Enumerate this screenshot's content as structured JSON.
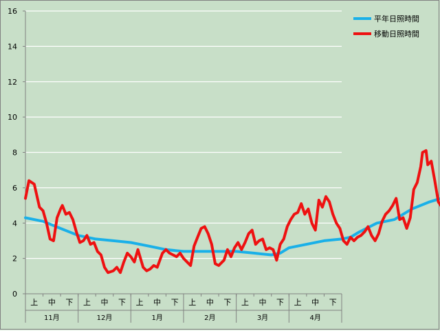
{
  "colors": {
    "background": "#c8dfc8",
    "grid": "#ffffff",
    "axis": "#808080",
    "border": "#808080",
    "text": "#000000"
  },
  "chart_data": {
    "type": "line",
    "title": "",
    "xlabel": "",
    "ylabel": "",
    "ylim": [
      0,
      16
    ],
    "yticks": [
      0,
      2,
      4,
      6,
      8,
      10,
      12,
      14,
      16
    ],
    "grid": true,
    "legend_position": "top-right",
    "x_groups": [
      {
        "month": "11月",
        "periods": [
          "上",
          "中",
          "下"
        ]
      },
      {
        "month": "12月",
        "periods": [
          "上",
          "中",
          "下"
        ]
      },
      {
        "month": "1月",
        "periods": [
          "上",
          "中",
          "下"
        ]
      },
      {
        "month": "2月",
        "periods": [
          "上",
          "中",
          "下"
        ]
      },
      {
        "month": "3月",
        "periods": [
          "上",
          "中",
          "下"
        ]
      },
      {
        "month": "4月",
        "periods": [
          "上",
          "中",
          "下"
        ]
      }
    ],
    "series": [
      {
        "name": "平年日照時間",
        "color": "#1ab0e8",
        "line_width": 4,
        "points": [
          [
            0,
            4.3
          ],
          [
            1,
            4.1
          ],
          [
            2,
            3.7
          ],
          [
            3,
            3.3
          ],
          [
            4,
            3.1
          ],
          [
            5,
            3.0
          ],
          [
            6,
            2.9
          ],
          [
            7,
            2.7
          ],
          [
            8,
            2.5
          ],
          [
            9,
            2.4
          ],
          [
            10,
            2.4
          ],
          [
            11,
            2.4
          ],
          [
            12,
            2.4
          ],
          [
            13,
            2.3
          ],
          [
            14,
            2.2
          ],
          [
            14.5,
            2.3
          ],
          [
            15,
            2.6
          ],
          [
            16,
            2.8
          ],
          [
            17,
            3.0
          ],
          [
            18,
            3.1
          ],
          [
            18.5,
            3.2
          ],
          [
            19,
            3.5
          ],
          [
            20,
            4.0
          ],
          [
            21,
            4.2
          ],
          [
            22,
            4.8
          ],
          [
            23,
            5.2
          ],
          [
            24,
            5.5
          ],
          [
            25,
            5.7
          ],
          [
            26,
            6.0
          ],
          [
            27,
            6.1
          ],
          [
            28,
            6.3
          ],
          [
            29,
            6.7
          ],
          [
            29.5,
            6.7
          ]
        ]
      },
      {
        "name": "移動日照時間",
        "color": "#ee1111",
        "line_width": 4,
        "points": [
          [
            0,
            5.4
          ],
          [
            0.2,
            6.4
          ],
          [
            0.5,
            6.2
          ],
          [
            0.8,
            4.9
          ],
          [
            1.0,
            4.7
          ],
          [
            1.2,
            4.0
          ],
          [
            1.4,
            3.1
          ],
          [
            1.6,
            3.0
          ],
          [
            1.8,
            4.3
          ],
          [
            2.0,
            4.8
          ],
          [
            2.1,
            5.0
          ],
          [
            2.3,
            4.5
          ],
          [
            2.5,
            4.6
          ],
          [
            2.7,
            4.2
          ],
          [
            2.9,
            3.5
          ],
          [
            3.1,
            2.9
          ],
          [
            3.3,
            3.0
          ],
          [
            3.5,
            3.3
          ],
          [
            3.7,
            2.8
          ],
          [
            3.9,
            2.9
          ],
          [
            4.1,
            2.4
          ],
          [
            4.3,
            2.2
          ],
          [
            4.5,
            1.5
          ],
          [
            4.7,
            1.2
          ],
          [
            5.0,
            1.3
          ],
          [
            5.2,
            1.5
          ],
          [
            5.4,
            1.2
          ],
          [
            5.6,
            1.8
          ],
          [
            5.8,
            2.3
          ],
          [
            6.0,
            2.1
          ],
          [
            6.2,
            1.8
          ],
          [
            6.4,
            2.5
          ],
          [
            6.7,
            1.5
          ],
          [
            6.9,
            1.3
          ],
          [
            7.1,
            1.4
          ],
          [
            7.3,
            1.6
          ],
          [
            7.5,
            1.5
          ],
          [
            7.8,
            2.3
          ],
          [
            8.0,
            2.5
          ],
          [
            8.2,
            2.3
          ],
          [
            8.4,
            2.2
          ],
          [
            8.6,
            2.1
          ],
          [
            8.8,
            2.3
          ],
          [
            9.0,
            2.0
          ],
          [
            9.2,
            1.8
          ],
          [
            9.4,
            1.6
          ],
          [
            9.6,
            2.7
          ],
          [
            9.8,
            3.2
          ],
          [
            10.0,
            3.7
          ],
          [
            10.2,
            3.8
          ],
          [
            10.4,
            3.4
          ],
          [
            10.6,
            2.8
          ],
          [
            10.8,
            1.7
          ],
          [
            11.0,
            1.6
          ],
          [
            11.3,
            1.9
          ],
          [
            11.5,
            2.5
          ],
          [
            11.7,
            2.1
          ],
          [
            11.9,
            2.6
          ],
          [
            12.1,
            2.9
          ],
          [
            12.3,
            2.5
          ],
          [
            12.5,
            2.9
          ],
          [
            12.7,
            3.4
          ],
          [
            12.9,
            3.6
          ],
          [
            13.1,
            2.8
          ],
          [
            13.3,
            3.0
          ],
          [
            13.5,
            3.1
          ],
          [
            13.7,
            2.5
          ],
          [
            13.9,
            2.6
          ],
          [
            14.1,
            2.5
          ],
          [
            14.3,
            1.9
          ],
          [
            14.5,
            2.8
          ],
          [
            14.7,
            3.1
          ],
          [
            14.9,
            3.8
          ],
          [
            15.1,
            4.2
          ],
          [
            15.3,
            4.5
          ],
          [
            15.5,
            4.6
          ],
          [
            15.7,
            5.1
          ],
          [
            15.9,
            4.5
          ],
          [
            16.1,
            4.8
          ],
          [
            16.3,
            4.0
          ],
          [
            16.5,
            3.6
          ],
          [
            16.7,
            5.3
          ],
          [
            16.9,
            4.9
          ],
          [
            17.1,
            5.5
          ],
          [
            17.3,
            5.2
          ],
          [
            17.5,
            4.5
          ],
          [
            17.7,
            4.0
          ],
          [
            17.9,
            3.7
          ],
          [
            18.1,
            3.0
          ],
          [
            18.3,
            2.8
          ],
          [
            18.5,
            3.2
          ],
          [
            18.7,
            3.0
          ],
          [
            18.9,
            3.2
          ],
          [
            19.1,
            3.3
          ],
          [
            19.3,
            3.5
          ],
          [
            19.5,
            3.8
          ],
          [
            19.7,
            3.3
          ],
          [
            19.9,
            3.0
          ],
          [
            20.1,
            3.4
          ],
          [
            20.3,
            4.1
          ],
          [
            20.5,
            4.5
          ],
          [
            20.7,
            4.7
          ],
          [
            20.9,
            5.0
          ],
          [
            21.1,
            5.4
          ],
          [
            21.3,
            4.2
          ],
          [
            21.5,
            4.3
          ],
          [
            21.7,
            3.7
          ],
          [
            21.9,
            4.3
          ],
          [
            22.1,
            5.9
          ],
          [
            22.3,
            6.3
          ],
          [
            22.5,
            7.2
          ],
          [
            22.6,
            8.0
          ],
          [
            22.8,
            8.1
          ],
          [
            22.9,
            7.3
          ],
          [
            23.1,
            7.5
          ],
          [
            23.3,
            6.4
          ],
          [
            23.5,
            5.2
          ],
          [
            23.7,
            4.9
          ],
          [
            23.9,
            5.5
          ],
          [
            24.1,
            4.5
          ],
          [
            24.3,
            4.1
          ],
          [
            24.5,
            5.0
          ],
          [
            24.7,
            5.1
          ],
          [
            24.9,
            4.9
          ],
          [
            25.1,
            5.7
          ],
          [
            25.2,
            6.7
          ]
        ]
      }
    ]
  }
}
